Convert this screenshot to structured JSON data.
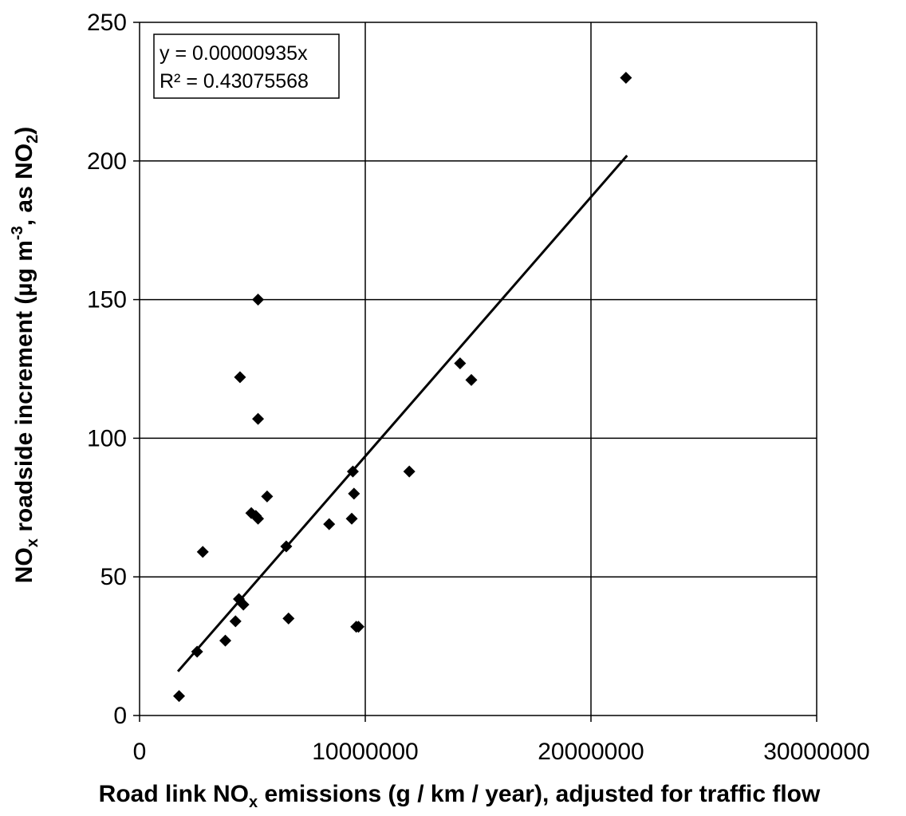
{
  "chart_data": {
    "type": "scatter",
    "xlabel": {
      "pre": "Road link NO",
      "sub": "x",
      "post": " emissions (g / km / year), adjusted for traffic flow"
    },
    "ylabel": {
      "p1": "NO",
      "sub1": "x",
      "p2": " roadside increment (µg m",
      "sup": "-3",
      "p3": ", as NO",
      "sub2": "2",
      "p4": ")"
    },
    "xlim": [
      0,
      30000000
    ],
    "ylim": [
      0,
      250
    ],
    "x_ticks": [
      0,
      10000000,
      20000000,
      30000000
    ],
    "x_tick_labels": [
      "0",
      "10000000",
      "20000000",
      "30000000"
    ],
    "y_ticks": [
      0,
      50,
      100,
      150,
      200,
      250
    ],
    "y_tick_labels": [
      "0",
      "50",
      "100",
      "150",
      "200",
      "250"
    ],
    "grid": true,
    "marker": "diamond",
    "trendline": {
      "slope": 9.35e-06,
      "x_start": 1700000,
      "x_end": 21600000
    },
    "equation": "y = 0.00000935x",
    "r_squared": "R² = 0.43075568",
    "points": [
      {
        "x": 1750000,
        "y": 7
      },
      {
        "x": 2550000,
        "y": 23
      },
      {
        "x": 2800000,
        "y": 59
      },
      {
        "x": 3800000,
        "y": 27
      },
      {
        "x": 4250000,
        "y": 34
      },
      {
        "x": 4400000,
        "y": 42
      },
      {
        "x": 4450000,
        "y": 122
      },
      {
        "x": 4600000,
        "y": 40
      },
      {
        "x": 4950000,
        "y": 73
      },
      {
        "x": 5150000,
        "y": 72
      },
      {
        "x": 5250000,
        "y": 71
      },
      {
        "x": 5250000,
        "y": 107
      },
      {
        "x": 5250000,
        "y": 150
      },
      {
        "x": 5650000,
        "y": 79
      },
      {
        "x": 6500000,
        "y": 61
      },
      {
        "x": 6600000,
        "y": 35
      },
      {
        "x": 8400000,
        "y": 69
      },
      {
        "x": 9400000,
        "y": 71
      },
      {
        "x": 9450000,
        "y": 88
      },
      {
        "x": 9500000,
        "y": 80
      },
      {
        "x": 9600000,
        "y": 32
      },
      {
        "x": 9700000,
        "y": 32
      },
      {
        "x": 11950000,
        "y": 88
      },
      {
        "x": 14200000,
        "y": 127
      },
      {
        "x": 14700000,
        "y": 121
      },
      {
        "x": 21550000,
        "y": 230
      }
    ]
  }
}
